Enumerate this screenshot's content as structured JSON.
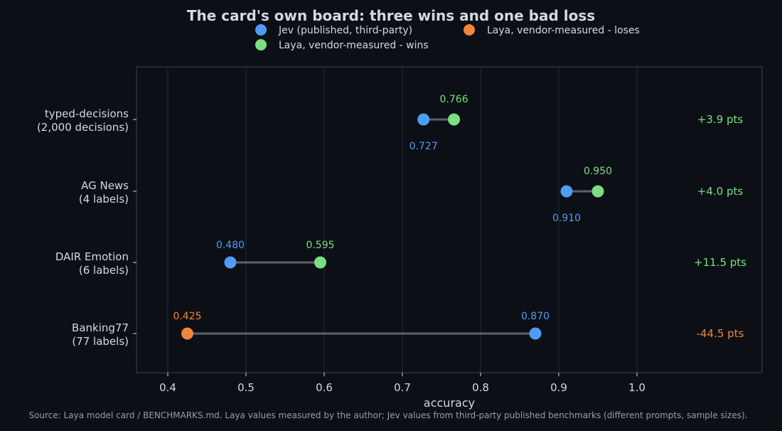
{
  "chart_data": {
    "type": "dumbbell",
    "title": "The card's own board: three wins and one bad loss",
    "xlabel": "accuracy",
    "xlim": [
      0.36,
      1.16
    ],
    "xticks": [
      0.4,
      0.5,
      0.6,
      0.7,
      0.8,
      0.9,
      1.0
    ],
    "tick_labels": [
      "0.4",
      "0.5",
      "0.6",
      "0.7",
      "0.8",
      "0.9",
      "1.0"
    ],
    "grid": "vertical",
    "legend_placement": "top-center",
    "legend": [
      {
        "label": "Jev (published, third-party)",
        "color": "#4f9cf5"
      },
      {
        "label": "Laya, vendor-measured - loses",
        "color": "#f0863b"
      },
      {
        "label": "Laya, vendor-measured - wins",
        "color": "#7ae07f"
      }
    ],
    "categories": [
      {
        "line1": "typed-decisions",
        "line2": "(2,000 decisions)",
        "jev": 0.727,
        "jev_label": "0.727",
        "laya": 0.766,
        "laya_label": "0.766",
        "outcome": "wins",
        "delta": "+3.9 pts"
      },
      {
        "line1": "AG News",
        "line2": "(4 labels)",
        "jev": 0.91,
        "jev_label": "0.910",
        "laya": 0.95,
        "laya_label": "0.950",
        "outcome": "wins",
        "delta": "+4.0 pts"
      },
      {
        "line1": "DAIR Emotion",
        "line2": "(6 labels)",
        "jev": 0.48,
        "jev_label": "0.480",
        "laya": 0.595,
        "laya_label": "0.595",
        "outcome": "wins",
        "delta": "+11.5 pts"
      },
      {
        "line1": "Banking77",
        "line2": "(77 labels)",
        "jev": 0.87,
        "jev_label": "0.870",
        "laya": 0.425,
        "laya_label": "0.425",
        "outcome": "loses",
        "delta": "-44.5 pts"
      }
    ],
    "colors": {
      "jev": "#4f9cf5",
      "laya_wins": "#7ae07f",
      "laya_loses": "#f0863b",
      "connector": "#5d6068",
      "text": "#d6d8dc",
      "frame": "#3c4048",
      "grid": "#262a33"
    },
    "source_note": "Source: Laya model card / BENCHMARKS.md. Laya values measured by the author; Jev values from third-party published benchmarks (different prompts, sample sizes)."
  }
}
